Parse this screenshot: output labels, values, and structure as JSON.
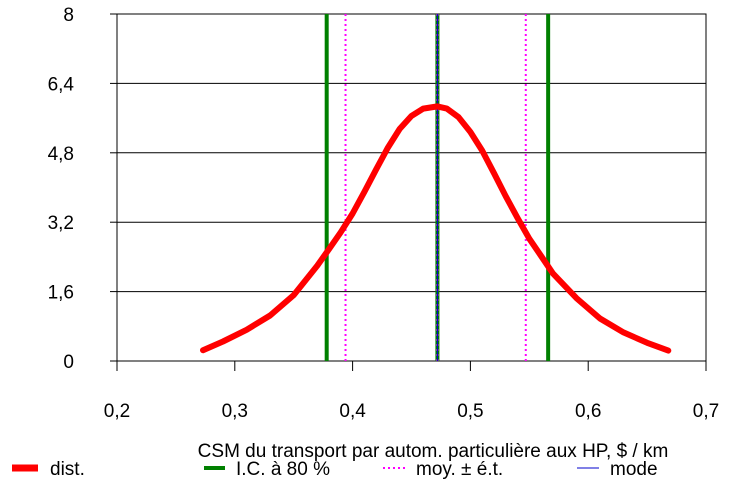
{
  "chart_data": {
    "type": "line",
    "xlabel": "CSM du transport par autom. particulière aux HP, $ / km",
    "ylabel": "",
    "xlim": [
      0.2,
      0.7
    ],
    "ylim": [
      0,
      8
    ],
    "x_ticks": [
      0.2,
      0.3,
      0.4,
      0.5,
      0.6,
      0.7
    ],
    "x_tick_labels": [
      "0,2",
      "0,3",
      "0,4",
      "0,5",
      "0,6",
      "0,7"
    ],
    "y_ticks": [
      0,
      1.6,
      3.2,
      4.8,
      6.4,
      8
    ],
    "y_tick_labels": [
      "0",
      "1,6",
      "3,2",
      "4,8",
      "6,4",
      "8"
    ],
    "grid": "horizontal",
    "legend_position": "bottom",
    "series": [
      {
        "name": "dist.",
        "color": "#ff0000",
        "style": "thick-solid",
        "x": [
          0.273,
          0.29,
          0.31,
          0.33,
          0.35,
          0.37,
          0.38,
          0.39,
          0.4,
          0.41,
          0.42,
          0.43,
          0.44,
          0.45,
          0.46,
          0.472,
          0.48,
          0.49,
          0.5,
          0.51,
          0.52,
          0.53,
          0.54,
          0.55,
          0.56,
          0.57,
          0.59,
          0.61,
          0.63,
          0.65,
          0.668
        ],
        "y": [
          0.25,
          0.45,
          0.72,
          1.05,
          1.52,
          2.2,
          2.58,
          2.97,
          3.4,
          3.9,
          4.42,
          4.92,
          5.35,
          5.65,
          5.82,
          5.87,
          5.82,
          5.62,
          5.28,
          4.85,
          4.33,
          3.8,
          3.3,
          2.82,
          2.42,
          2.02,
          1.45,
          0.98,
          0.66,
          0.42,
          0.24
        ]
      },
      {
        "name": "I.C. à 80 %",
        "color": "#008000",
        "style": "vertical-lines",
        "x_values": [
          0.378,
          0.472,
          0.566
        ]
      },
      {
        "name": "moy. ± é.t.",
        "color": "#ff00ff",
        "style": "vertical-dotted",
        "x_values": [
          0.394,
          0.472,
          0.547
        ]
      },
      {
        "name": "mode",
        "color": "#0000cc",
        "style": "vertical-thin",
        "x_values": [
          0.472
        ]
      }
    ]
  }
}
